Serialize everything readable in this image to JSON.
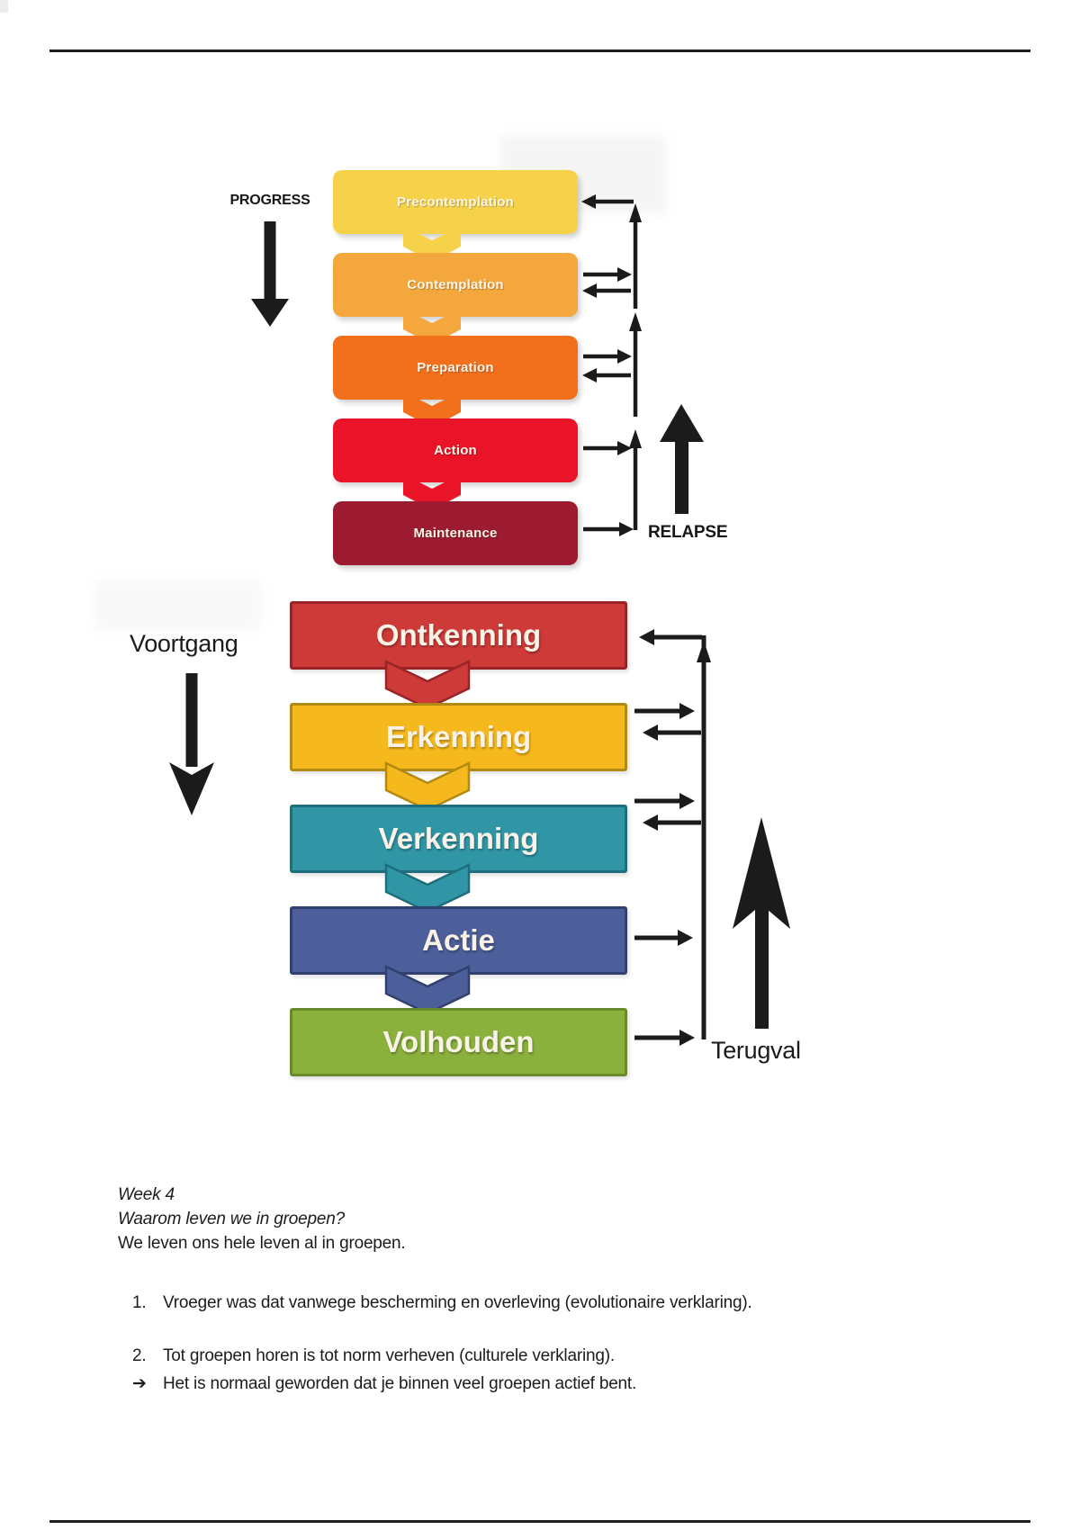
{
  "ink": "#1b1b1b",
  "diagram_en": {
    "progress_label": "PROGRESS",
    "relapse_label": "RELAPSE",
    "stages": [
      {
        "label": "Precontemplation",
        "color": "#F6D24B"
      },
      {
        "label": "Contemplation",
        "color": "#F4A73C"
      },
      {
        "label": "Preparation",
        "color": "#F26F1C"
      },
      {
        "label": "Action",
        "color": "#EA1428"
      },
      {
        "label": "Maintenance",
        "color": "#9C1B31"
      }
    ]
  },
  "diagram_nl": {
    "progress_label": "Voortgang",
    "relapse_label": "Terugval",
    "stages": [
      {
        "label": "Ontkenning",
        "color": "#CD3A38",
        "border": "#992427"
      },
      {
        "label": "Erkenning",
        "color": "#F6B91D",
        "border": "#B08A12"
      },
      {
        "label": "Verkenning",
        "color": "#3096A6",
        "border": "#1E6E7C"
      },
      {
        "label": "Actie",
        "color": "#4D5F9A",
        "border": "#31406E"
      },
      {
        "label": "Volhouden",
        "color": "#8AB13C",
        "border": "#69892B"
      }
    ]
  },
  "notes": {
    "week_title": "Week 4",
    "question": "Waarom leven we in groepen?",
    "intro": "We leven ons hele leven al in groepen.",
    "items": [
      {
        "marker": "1.",
        "text": "Vroeger was dat vanwege bescherming en overleving (evolutionaire verklaring)."
      },
      {
        "marker": "2.",
        "text": "Tot groepen horen is tot norm verheven (culturele verklaring)."
      },
      {
        "marker": "➔",
        "text": "Het is normaal geworden dat je binnen veel groepen actief bent."
      }
    ]
  }
}
